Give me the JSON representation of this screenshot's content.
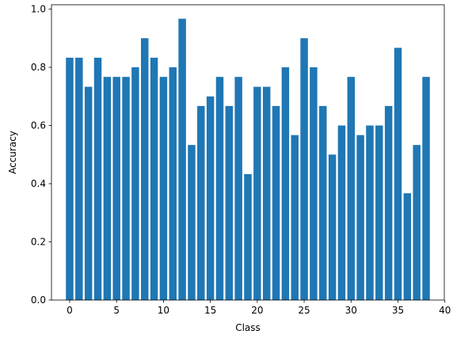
{
  "chart_data": {
    "type": "bar",
    "x": [
      0,
      1,
      2,
      3,
      4,
      5,
      6,
      7,
      8,
      9,
      10,
      11,
      12,
      13,
      14,
      15,
      16,
      17,
      18,
      19,
      20,
      21,
      22,
      23,
      24,
      25,
      26,
      27,
      28,
      29,
      30,
      31,
      32,
      33,
      34,
      35,
      36,
      37,
      38
    ],
    "values": [
      0.833,
      0.833,
      0.733,
      0.833,
      0.767,
      0.767,
      0.767,
      0.8,
      0.9,
      0.833,
      0.767,
      0.8,
      0.967,
      0.533,
      0.667,
      0.7,
      0.767,
      0.667,
      0.767,
      0.433,
      0.733,
      0.733,
      0.667,
      0.8,
      0.567,
      0.9,
      0.8,
      0.667,
      0.5,
      0.6,
      0.767,
      0.567,
      0.6,
      0.6,
      0.667,
      0.867,
      0.367,
      0.533,
      0.767
    ],
    "xlabel": "Class",
    "ylabel": "Accuracy",
    "xlim": [
      -1.94,
      39.94
    ],
    "ylim": [
      0,
      1.015
    ],
    "xticks": [
      0,
      5,
      10,
      15,
      20,
      25,
      30,
      35,
      40
    ],
    "xtick_labels": [
      "0",
      "5",
      "10",
      "15",
      "20",
      "25",
      "30",
      "35",
      "40"
    ],
    "yticks": [
      0,
      0.2,
      0.4,
      0.6,
      0.8,
      1.0
    ],
    "ytick_labels": [
      "0.0",
      "0.2",
      "0.4",
      "0.6",
      "0.8",
      "1.0"
    ],
    "bar_color": "#1f77b4",
    "grid": false
  }
}
